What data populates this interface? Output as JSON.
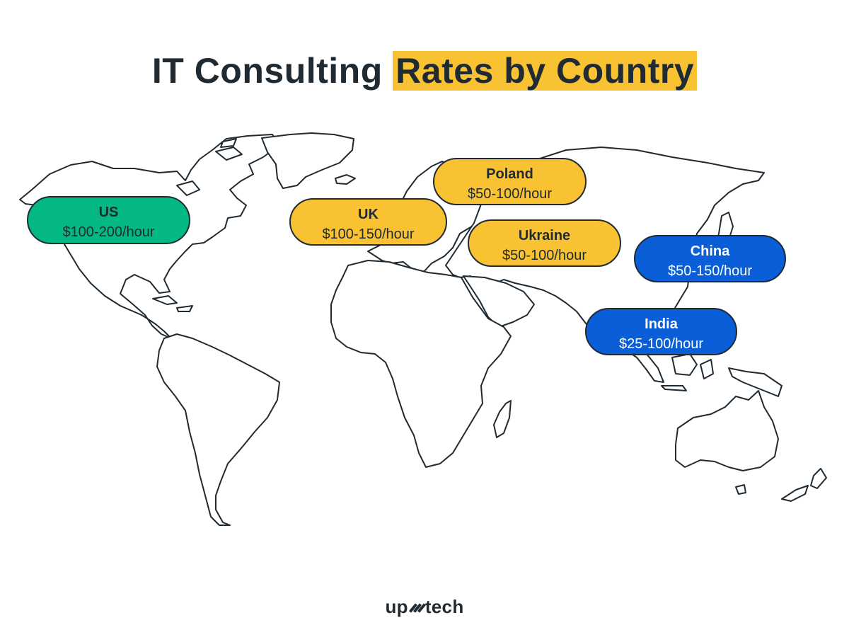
{
  "title": {
    "part1": "IT Consulting ",
    "part2": "Rates by Country",
    "highlight_color": "#f8c232"
  },
  "markers": [
    {
      "id": "us",
      "country": "US",
      "rate": "$100-200/hour",
      "color": "#04b884",
      "text_color": "#1f2a33"
    },
    {
      "id": "uk",
      "country": "UK",
      "rate": "$100-150/hour",
      "color": "#f8c232",
      "text_color": "#1f2a33"
    },
    {
      "id": "poland",
      "country": "Poland",
      "rate": "$50-100/hour",
      "color": "#f8c232",
      "text_color": "#1f2a33"
    },
    {
      "id": "ukraine",
      "country": "Ukraine",
      "rate": "$50-100/hour",
      "color": "#f8c232",
      "text_color": "#1f2a33"
    },
    {
      "id": "china",
      "country": "China",
      "rate": "$50-150/hour",
      "color": "#0a5ed7",
      "text_color": "#ffffff"
    },
    {
      "id": "india",
      "country": "India",
      "rate": "$25-100/hour",
      "color": "#0a5ed7",
      "text_color": "#ffffff"
    }
  ],
  "logo": {
    "left": "up",
    "right": "tech",
    "mark_icon": "hash-mark-icon"
  }
}
